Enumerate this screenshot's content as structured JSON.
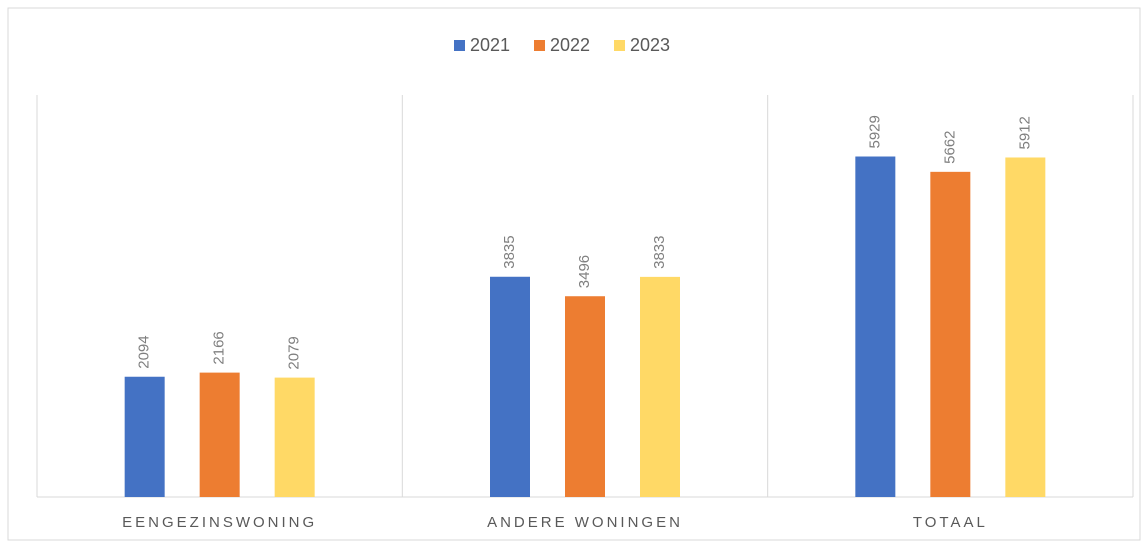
{
  "chart_data": {
    "type": "bar",
    "categories": [
      "EENGEZINSWONING",
      "ANDERE WONINGEN",
      "TOTAAL"
    ],
    "series": [
      {
        "name": "2021",
        "color": "#4472c4",
        "values": [
          2094,
          3835,
          5929
        ]
      },
      {
        "name": "2022",
        "color": "#ed7d31",
        "values": [
          2166,
          3496,
          5662
        ]
      },
      {
        "name": "2023",
        "color": "#ffd966",
        "values": [
          2079,
          3833,
          5912
        ]
      }
    ],
    "ylim": [
      0,
      7000
    ],
    "legend": "top"
  }
}
